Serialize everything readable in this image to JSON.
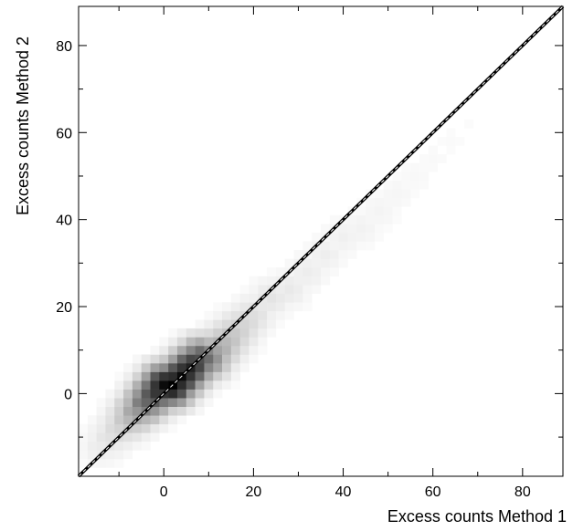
{
  "chart_data": {
    "type": "heatmap",
    "title": "",
    "xlabel": "Excess counts Method 1",
    "ylabel": "Excess counts Method 2",
    "xlim": [
      -19,
      89
    ],
    "ylim": [
      -19,
      89
    ],
    "x_ticks": [
      0,
      20,
      40,
      60,
      80
    ],
    "y_ticks": [
      0,
      20,
      40,
      60,
      80
    ],
    "bin_size": 2,
    "grid": false,
    "colormap": [
      "#ffffff",
      "#000000"
    ],
    "density_ridge": [
      {
        "x": -14,
        "y": -13,
        "v": 0.05
      },
      {
        "x": -12,
        "y": -10,
        "v": 0.08
      },
      {
        "x": -10,
        "y": -9,
        "v": 0.12
      },
      {
        "x": -8,
        "y": -7,
        "v": 0.2
      },
      {
        "x": -6,
        "y": -5,
        "v": 0.35
      },
      {
        "x": -4,
        "y": -3,
        "v": 0.55
      },
      {
        "x": -2,
        "y": -1,
        "v": 0.75
      },
      {
        "x": 0,
        "y": 1,
        "v": 0.95
      },
      {
        "x": 2,
        "y": 2,
        "v": 1.0
      },
      {
        "x": 4,
        "y": 4,
        "v": 0.95
      },
      {
        "x": 6,
        "y": 5,
        "v": 0.85
      },
      {
        "x": 8,
        "y": 7,
        "v": 0.65
      },
      {
        "x": 10,
        "y": 8,
        "v": 0.45
      },
      {
        "x": 12,
        "y": 10,
        "v": 0.3
      },
      {
        "x": 14,
        "y": 12,
        "v": 0.22
      },
      {
        "x": 16,
        "y": 13,
        "v": 0.16
      },
      {
        "x": 18,
        "y": 15,
        "v": 0.12
      },
      {
        "x": 20,
        "y": 17,
        "v": 0.09
      },
      {
        "x": 24,
        "y": 21,
        "v": 0.07
      },
      {
        "x": 28,
        "y": 24,
        "v": 0.055
      },
      {
        "x": 32,
        "y": 28,
        "v": 0.045
      },
      {
        "x": 36,
        "y": 32,
        "v": 0.04
      },
      {
        "x": 40,
        "y": 35,
        "v": 0.035
      },
      {
        "x": 44,
        "y": 38,
        "v": 0.03
      },
      {
        "x": 48,
        "y": 42,
        "v": 0.025
      },
      {
        "x": 52,
        "y": 46,
        "v": 0.02
      },
      {
        "x": 56,
        "y": 50,
        "v": 0.015
      },
      {
        "x": 60,
        "y": 53,
        "v": 0.012
      },
      {
        "x": 64,
        "y": 57,
        "v": 0.01
      },
      {
        "x": 68,
        "y": 62,
        "v": 0.008
      }
    ],
    "lines": [
      {
        "name": "identity",
        "points": [
          [
            -19,
            -19
          ],
          [
            89,
            89
          ]
        ],
        "color": "#000000",
        "style": "solid"
      },
      {
        "name": "fit",
        "points": [
          [
            -19,
            -19
          ],
          [
            89,
            89
          ]
        ],
        "color": "#ffffff",
        "style": "dashed"
      }
    ]
  }
}
